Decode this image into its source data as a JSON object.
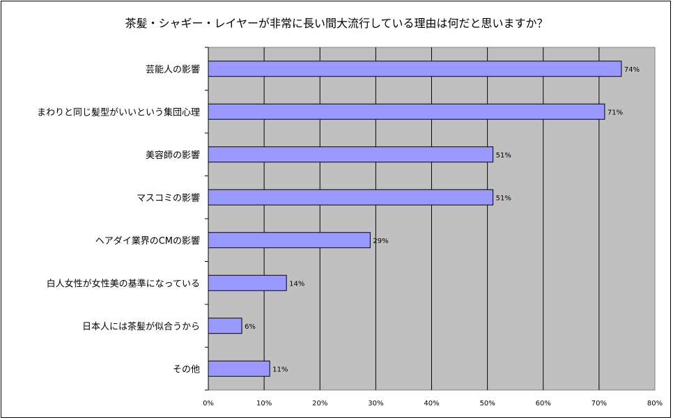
{
  "chart_data": {
    "type": "bar",
    "orientation": "horizontal",
    "title": "茶髪・シャギー・レイヤーが非常に長い間大流行している理由は何だと思いますか？",
    "categories": [
      "芸能人の影響",
      "まわりと同じ髪型がいいという集団心理",
      "美容師の影響",
      "マスコミの影響",
      "ヘアダイ業界のCMの影響",
      "白人女性が女性美の基準になっている",
      "日本人には茶髪が似合うから",
      "その他"
    ],
    "values": [
      74,
      71,
      51,
      51,
      29,
      14,
      6,
      11
    ],
    "data_labels": [
      "74%",
      "71%",
      "51%",
      "51%",
      "29%",
      "14%",
      "6%",
      "11%"
    ],
    "xlim": [
      0,
      80
    ],
    "x_ticks": [
      "0%",
      "10%",
      "20%",
      "30%",
      "40%",
      "50%",
      "60%",
      "70%",
      "80%"
    ],
    "grid": true,
    "legend": "none",
    "colors": {
      "bar_fill": "#9999ff",
      "bar_stroke": "#000000",
      "plot_background": "#c0c0c0",
      "gridline": "#000000"
    }
  }
}
